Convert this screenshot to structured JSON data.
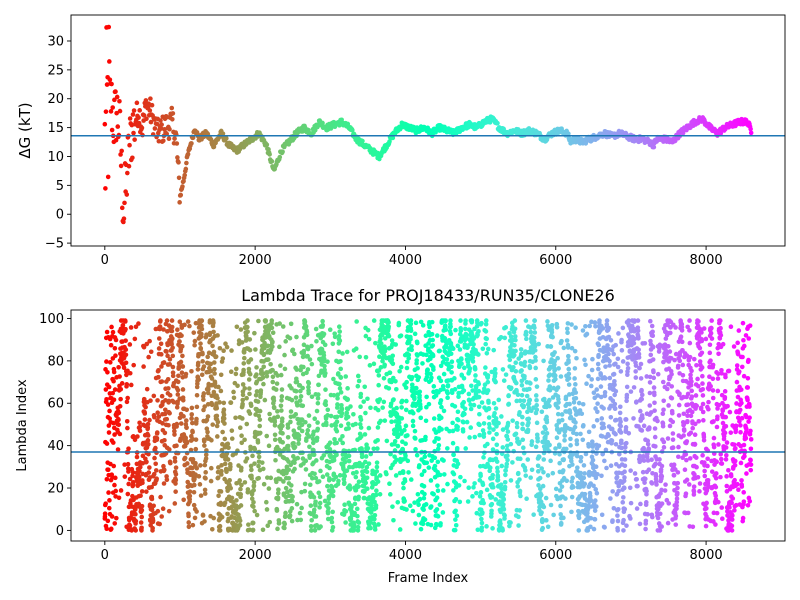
{
  "chart_data": [
    {
      "type": "scatter",
      "title": "",
      "xlabel": "",
      "ylabel": "ΔG (kT)",
      "xlim": [
        -450,
        9050
      ],
      "ylim": [
        -5.5,
        34.5
      ],
      "xticks": [
        0,
        2000,
        4000,
        6000,
        8000
      ],
      "xtick_labels": [
        "0",
        "2000",
        "4000",
        "6000",
        "8000"
      ],
      "yticks": [
        -5,
        0,
        5,
        10,
        15,
        20,
        25,
        30
      ],
      "ytick_labels": [
        "−5",
        "0",
        "5",
        "10",
        "15",
        "20",
        "25",
        "30"
      ],
      "hline": 13.6,
      "grid": false,
      "colormap": "rainbow (frame 0 = red, last frame = violet)",
      "frame_range": [
        0,
        8600
      ],
      "approx_trace": {
        "x": [
          0,
          40,
          80,
          120,
          160,
          200,
          250,
          300,
          350,
          400,
          450,
          500,
          550,
          600,
          650,
          700,
          800,
          900,
          950,
          1000,
          1050,
          1100,
          1200,
          1250,
          1350,
          1450,
          1550,
          1650,
          1750,
          1850,
          1950,
          2050,
          2150,
          2250,
          2350,
          2450,
          2550,
          2650,
          2750,
          2850,
          2950,
          3050,
          3150,
          3250,
          3350,
          3450,
          3550,
          3650,
          3750,
          3850,
          3950,
          4050,
          4150,
          4250,
          4350,
          4450,
          4550,
          4650,
          4750,
          4850,
          4950,
          5050,
          5150,
          5250,
          5350,
          5450,
          5550,
          5650,
          5750,
          5850,
          5950,
          6050,
          6150,
          6200,
          6250,
          6350,
          6450,
          6550,
          6650,
          6750,
          6850,
          6950,
          7050,
          7150,
          7250,
          7300,
          7350,
          7450,
          7550,
          7650,
          7750,
          7850,
          7950,
          8050,
          8150,
          8250,
          8350,
          8450,
          8550,
          8600
        ],
        "y": [
          10,
          18,
          20,
          16,
          18,
          14,
          0,
          8,
          14,
          16,
          18,
          15,
          19,
          18,
          16,
          14,
          15,
          16,
          13,
          3,
          6,
          10,
          15,
          13,
          14,
          12,
          14,
          12,
          11,
          12,
          13,
          14,
          12,
          7.5,
          11,
          12.5,
          14,
          15,
          14,
          16,
          15,
          15.5,
          16,
          15,
          13,
          12,
          11,
          10,
          12,
          14,
          15.5,
          15,
          14.5,
          15,
          14,
          15,
          14.5,
          14,
          15,
          15.5,
          15,
          16,
          16.5,
          15,
          14,
          14.5,
          14,
          14.5,
          14,
          13,
          14,
          14.5,
          14,
          12.5,
          13,
          12.5,
          13,
          13.5,
          14,
          13.5,
          14,
          13.5,
          13,
          13,
          12.5,
          12,
          13,
          13,
          12.5,
          14,
          15,
          16,
          16.5,
          15,
          14,
          15,
          15.5,
          16,
          16,
          14.5
        ]
      }
    },
    {
      "type": "scatter",
      "title": "Lambda Trace for PROJ18433/RUN35/CLONE26",
      "xlabel": "Frame Index",
      "ylabel": "Lambda Index",
      "xlim": [
        -450,
        9050
      ],
      "ylim": [
        -5,
        104
      ],
      "xticks": [
        0,
        2000,
        4000,
        6000,
        8000
      ],
      "xtick_labels": [
        "0",
        "2000",
        "4000",
        "6000",
        "8000"
      ],
      "yticks": [
        0,
        20,
        40,
        60,
        80,
        100
      ],
      "ytick_labels": [
        "0",
        "20",
        "40",
        "60",
        "80",
        "100"
      ],
      "hline": 37,
      "grid": false,
      "colormap": "rainbow (frame 0 = red, last frame = violet)",
      "frame_range": [
        0,
        8600
      ],
      "value_range": [
        0,
        99
      ],
      "approx_point_count": 4500
    }
  ]
}
